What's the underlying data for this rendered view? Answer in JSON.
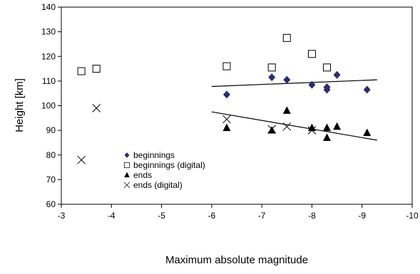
{
  "chart_data": {
    "type": "scatter",
    "xlabel": "Maximum absolute magnitude",
    "ylabel": "Height [km]",
    "xlim": [
      -3,
      -10
    ],
    "ylim": [
      60,
      140
    ],
    "x_ticks": [
      "-3",
      "-4",
      "-5",
      "-6",
      "-7",
      "-8",
      "-9",
      "-10"
    ],
    "y_ticks": [
      "60",
      "70",
      "80",
      "90",
      "100",
      "110",
      "120",
      "130",
      "140"
    ],
    "grid": false,
    "legend_position": "lower-left inside plot",
    "series": [
      {
        "name": "beginnings",
        "marker": "filled-diamond",
        "color": "#2b2d6e",
        "points": [
          [
            -6.3,
            104.5
          ],
          [
            -7.2,
            111.5
          ],
          [
            -7.5,
            110.5
          ],
          [
            -8.0,
            108.5
          ],
          [
            -8.3,
            107.5
          ],
          [
            -8.3,
            106.5
          ],
          [
            -8.5,
            112.5
          ],
          [
            -9.1,
            106.5
          ]
        ]
      },
      {
        "name": "beginnings (digital)",
        "marker": "open-square",
        "color": "#000000",
        "points": [
          [
            -3.4,
            114
          ],
          [
            -3.7,
            115
          ],
          [
            -6.3,
            116
          ],
          [
            -7.2,
            115.5
          ],
          [
            -7.5,
            127.5
          ],
          [
            -8.0,
            121
          ],
          [
            -8.3,
            115.5
          ]
        ]
      },
      {
        "name": "ends",
        "marker": "filled-triangle",
        "color": "#000000",
        "points": [
          [
            -6.3,
            91
          ],
          [
            -7.2,
            90
          ],
          [
            -7.5,
            98
          ],
          [
            -8.0,
            91
          ],
          [
            -8.3,
            91
          ],
          [
            -8.3,
            87
          ],
          [
            -8.5,
            91.5
          ],
          [
            -9.1,
            89
          ]
        ]
      },
      {
        "name": "ends (digital)",
        "marker": "x-cross",
        "color": "#000000",
        "points": [
          [
            -3.4,
            78
          ],
          [
            -3.7,
            99
          ],
          [
            -6.3,
            94.5
          ],
          [
            -7.2,
            90.5
          ],
          [
            -7.5,
            91.5
          ],
          [
            -8.0,
            90
          ]
        ]
      }
    ],
    "trendlines": [
      {
        "of": "beginnings",
        "points": [
          [
            -6.0,
            107.8
          ],
          [
            -9.3,
            110.5
          ]
        ]
      },
      {
        "of": "ends",
        "points": [
          [
            -6.0,
            97.5
          ],
          [
            -9.3,
            86
          ]
        ]
      }
    ]
  }
}
